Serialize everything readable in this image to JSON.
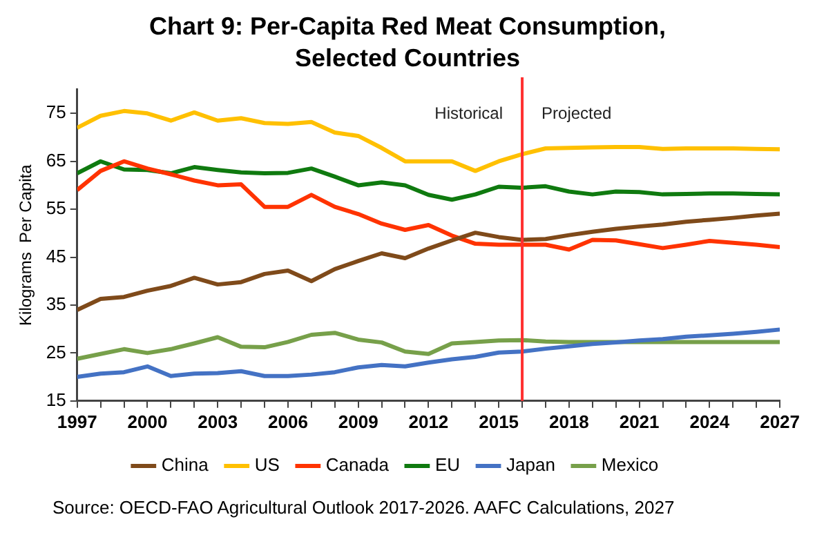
{
  "chart_data": {
    "type": "line",
    "title": "Chart 9: Per-Capita Red Meat Consumption, Selected Countries",
    "ylabel": "Kilograms  Per Capita",
    "x": [
      1997,
      1998,
      1999,
      2000,
      2001,
      2002,
      2003,
      2004,
      2005,
      2006,
      2007,
      2008,
      2009,
      2010,
      2011,
      2012,
      2013,
      2014,
      2015,
      2016,
      2017,
      2018,
      2019,
      2020,
      2021,
      2022,
      2023,
      2024,
      2025,
      2026,
      2027
    ],
    "xlim": [
      1997,
      2027
    ],
    "xticks": [
      1997,
      {
        "value": 1998,
        "label": null
      },
      {
        "value": 1999,
        "label": null
      },
      2000,
      {
        "value": 2001,
        "label": null
      },
      {
        "value": 2002,
        "label": null
      },
      2003,
      {
        "value": 2004,
        "label": null
      },
      {
        "value": 2005,
        "label": null
      },
      2006,
      {
        "value": 2007,
        "label": null
      },
      {
        "value": 2008,
        "label": null
      },
      2009,
      {
        "value": 2010,
        "label": null
      },
      {
        "value": 2011,
        "label": null
      },
      2012,
      {
        "value": 2013,
        "label": null
      },
      {
        "value": 2014,
        "label": null
      },
      2015,
      {
        "value": 2016,
        "label": null
      },
      {
        "value": 2017,
        "label": null
      },
      2018,
      {
        "value": 2019,
        "label": null
      },
      {
        "value": 2020,
        "label": null
      },
      2021,
      {
        "value": 2022,
        "label": null
      },
      {
        "value": 2023,
        "label": null
      },
      2024,
      {
        "value": 2025,
        "label": null
      },
      {
        "value": 2026,
        "label": null
      },
      2027
    ],
    "ylim": [
      15,
      80
    ],
    "yticks": [
      15,
      25,
      35,
      45,
      55,
      65,
      75
    ],
    "series": [
      {
        "name": "China",
        "color": "#7f4a1a",
        "values": [
          34,
          36.3,
          36.7,
          38,
          39,
          40.7,
          39.3,
          39.8,
          41.5,
          42.2,
          40,
          42.5,
          44.2,
          45.8,
          44.8,
          46.8,
          48.5,
          50.1,
          49.2,
          48.6,
          48.8,
          49.6,
          50.3,
          50.9,
          51.4,
          51.8,
          52.4,
          52.8,
          53.2,
          53.7,
          54.1
        ]
      },
      {
        "name": "US",
        "color": "#ffc000",
        "values": [
          72,
          74.5,
          75.5,
          75,
          73.5,
          75.2,
          73.5,
          74,
          73,
          72.8,
          73.2,
          71,
          70.3,
          67.8,
          65,
          65,
          65,
          63,
          65,
          66.5,
          67.7,
          67.8,
          67.9,
          68,
          68,
          67.6,
          67.7,
          67.7,
          67.7,
          67.6,
          67.5
        ]
      },
      {
        "name": "Canada",
        "color": "#ff3300",
        "values": [
          59,
          63,
          65,
          63.5,
          62.3,
          61,
          60,
          60.2,
          55.5,
          55.5,
          58,
          55.5,
          54,
          52,
          50.7,
          51.7,
          49.5,
          47.8,
          47.6,
          47.6,
          47.6,
          46.6,
          48.6,
          48.5,
          47.7,
          46.9,
          47.6,
          48.4,
          48,
          47.6,
          47.1
        ]
      },
      {
        "name": "EU",
        "color": "#0f7a0f",
        "values": [
          62.5,
          65,
          63.3,
          63.2,
          62.5,
          63.8,
          63.2,
          62.7,
          62.5,
          62.6,
          63.5,
          61.8,
          60,
          60.6,
          60,
          58,
          57,
          58.1,
          59.7,
          59.5,
          59.8,
          58.7,
          58.1,
          58.7,
          58.6,
          58.1,
          58.2,
          58.3,
          58.3,
          58.2,
          58.1
        ]
      },
      {
        "name": "Japan",
        "color": "#4472c4",
        "values": [
          20,
          20.7,
          21,
          22.2,
          20.2,
          20.7,
          20.8,
          21.2,
          20.2,
          20.2,
          20.5,
          21,
          22,
          22.5,
          22.2,
          23,
          23.7,
          24.2,
          25.1,
          25.3,
          25.9,
          26.4,
          26.9,
          27.2,
          27.6,
          27.9,
          28.4,
          28.7,
          29,
          29.4,
          29.9
        ]
      },
      {
        "name": "Mexico",
        "color": "#77a04a",
        "values": [
          23.8,
          24.8,
          25.8,
          25,
          25.8,
          27,
          28.3,
          26.3,
          26.2,
          27.3,
          28.8,
          29.2,
          27.8,
          27.2,
          25.3,
          24.8,
          27,
          27.3,
          27.6,
          27.7,
          27.4,
          27.3,
          27.3,
          27.3,
          27.3,
          27.3,
          27.3,
          27.3,
          27.3,
          27.3,
          27.3
        ]
      }
    ],
    "ref_lines": [
      {
        "axis": "x",
        "value": 2016,
        "color": "#ff3030"
      }
    ],
    "annotations": [
      "Historical",
      "Projected",
      "Source: OECD-FAO Agricultural Outlook 2017-2026. AAFC Calculations, 2027"
    ],
    "grid": false,
    "legend": "bottom",
    "marker": "none",
    "line_style": "solid"
  }
}
